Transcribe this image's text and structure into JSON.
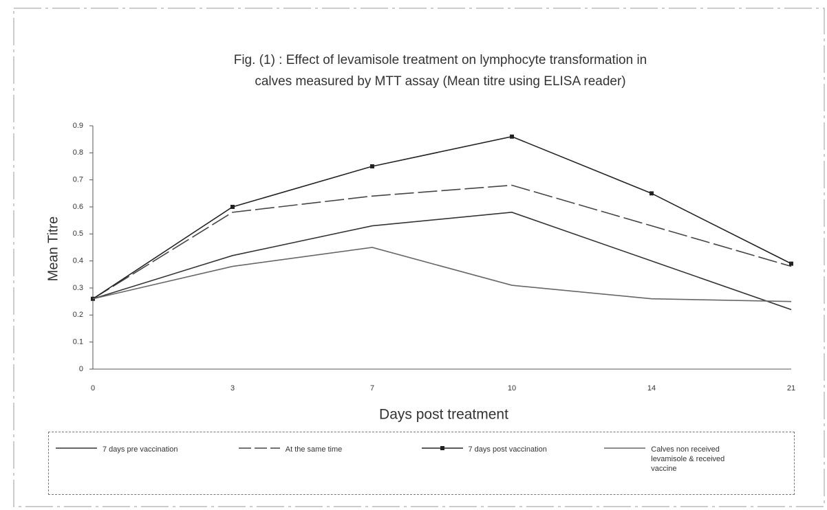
{
  "chart_data": {
    "type": "line",
    "title": [
      "Fig. (1) : Effect of levamisole treatment on lymphocyte transformation in",
      "calves measured by MTT assay (Mean titre using ELISA reader)"
    ],
    "x_label": "Days post treatment",
    "y_label": "Mean Titre",
    "categories": [
      "0",
      "3",
      "7",
      "10",
      "14",
      "21"
    ],
    "ylim": [
      0,
      0.9
    ],
    "yticks": [
      0,
      0.1,
      0.2,
      0.3,
      0.4,
      0.5,
      0.6,
      0.7,
      0.8,
      0.9
    ],
    "legend": "bottom",
    "series": [
      {
        "name": "7 days pre vaccination",
        "color": "#333333",
        "dash": "solid",
        "values": [
          0.26,
          0.42,
          0.53,
          0.58,
          0.4,
          0.22
        ]
      },
      {
        "name": "At the same time",
        "color": "#444444",
        "dash": "dashed",
        "values": [
          0.26,
          0.58,
          0.64,
          0.68,
          0.53,
          0.38
        ]
      },
      {
        "name": "7 days post vaccination",
        "color": "#222222",
        "dash": "solid",
        "marker": "square",
        "values": [
          0.26,
          0.6,
          0.75,
          0.86,
          0.65,
          0.39
        ]
      },
      {
        "name": "Calves non received levamisole & received vaccine",
        "color": "#666666",
        "dash": "solid",
        "values": [
          0.26,
          0.38,
          0.45,
          0.31,
          0.26,
          0.25
        ]
      }
    ]
  }
}
